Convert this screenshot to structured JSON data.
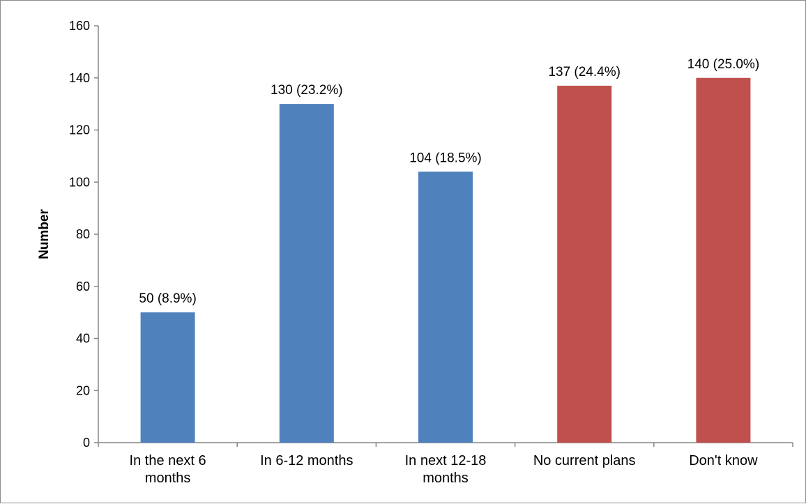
{
  "chart_data": {
    "type": "bar",
    "title": "",
    "xlabel": "",
    "ylabel": "Number",
    "ylim": [
      0,
      160
    ],
    "yticks": [
      0,
      20,
      40,
      60,
      80,
      100,
      120,
      140,
      160
    ],
    "grid": false,
    "legend": "none",
    "categories": [
      [
        "In the next 6",
        "months"
      ],
      [
        "In 6-12 months"
      ],
      [
        "In next 12-18",
        "months"
      ],
      [
        "No current plans"
      ],
      [
        "Don't know"
      ]
    ],
    "values": [
      50,
      130,
      104,
      137,
      140
    ],
    "data_labels": [
      "50 (8.9%)",
      "130 (23.2%)",
      "104 (18.5%)",
      "137 (24.4%)",
      "140 (25.0%)"
    ],
    "bar_colors": [
      "#4f81bd",
      "#4f81bd",
      "#4f81bd",
      "#c0504d",
      "#c0504d"
    ]
  }
}
